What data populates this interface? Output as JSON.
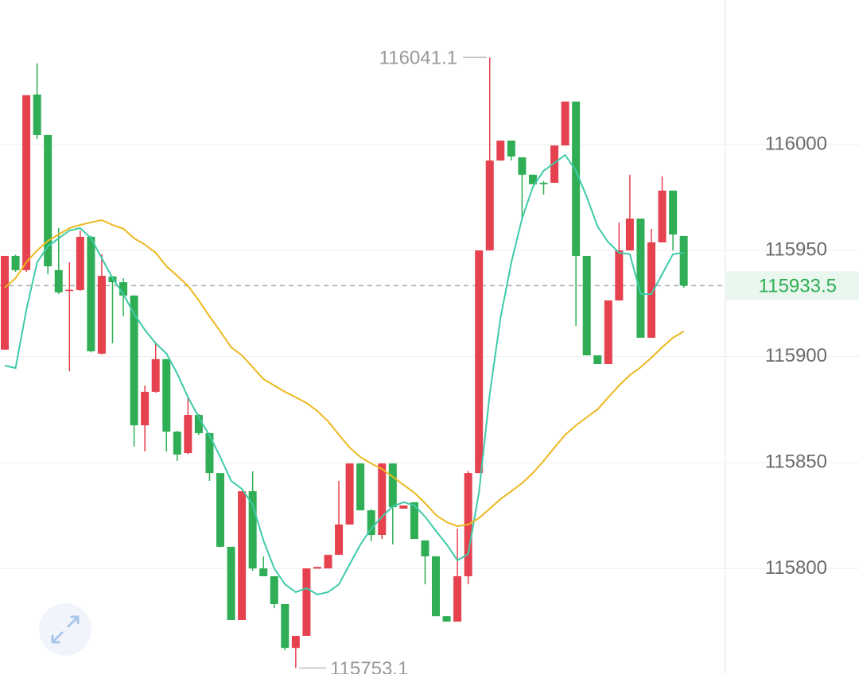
{
  "chart_data": {
    "type": "candlestick",
    "up_color": "#e5414e",
    "down_color": "#2fae55",
    "ylim": [
      115750.3,
      116068.2
    ],
    "yticks": [
      115800,
      115850,
      115900,
      115950,
      116000
    ],
    "grid": true,
    "open": [
      115903.3,
      115947.5,
      115940.8,
      116023.6,
      116004.5,
      115940.8,
      115931.0,
      115931.4,
      115956.5,
      115901.4,
      115937.8,
      115935.1,
      115928.8,
      115867.6,
      115883.4,
      115898.8,
      115864.6,
      115854.5,
      115872.5,
      115863.9,
      115845.1,
      115810.3,
      115775.8,
      115836.5,
      115800.1,
      115796.4,
      115783.3,
      115762.6,
      115768.3,
      115800.0,
      115800.1,
      115806.5,
      115820.8,
      115849.6,
      115827.5,
      115815.9,
      115849.6,
      115828.3,
      115831.3,
      115813.3,
      115805.8,
      115777.6,
      115775.0,
      115796.4,
      115845.1,
      115950.1,
      115992.5,
      116001.9,
      115994.0,
      115985.8,
      115982.0,
      115982.0,
      115999.6,
      116020.3,
      115947.5,
      115900.6,
      115896.5,
      115926.5,
      115950.1,
      115965.1,
      115908.9,
      115953.9,
      115978.3,
      115956.9
    ],
    "high": [
      115947.5,
      115948.0,
      116023.3,
      116038.3,
      116004.5,
      115960.6,
      115944.5,
      115959.5,
      115957.0,
      115948.3,
      115938.0,
      115937.0,
      115929.0,
      115886.4,
      115907.0,
      115899.0,
      115865.0,
      115880.8,
      115873.0,
      115864.0,
      115845.1,
      115810.3,
      115836.5,
      115845.9,
      115805.8,
      115796.4,
      115783.3,
      115768.3,
      115800.1,
      115800.8,
      115806.5,
      115841.4,
      115849.6,
      115849.6,
      115828.0,
      115849.6,
      115849.6,
      115829.8,
      115831.3,
      115813.3,
      115805.8,
      115777.6,
      115818.9,
      115846.0,
      115950.1,
      116041.1,
      116001.9,
      116001.9,
      115994.0,
      115985.8,
      115982.8,
      115999.6,
      116020.3,
      116020.3,
      115947.5,
      115900.6,
      115926.5,
      115963.3,
      115985.8,
      115965.1,
      115960.3,
      115985.0,
      115978.3,
      115956.9
    ],
    "low": [
      115903.3,
      115940.0,
      115940.0,
      116002.6,
      115938.9,
      115929.5,
      115893.1,
      115931.0,
      115902.0,
      115901.0,
      115906.3,
      115919.0,
      115857.5,
      115855.3,
      115883.0,
      115855.3,
      115850.8,
      115854.0,
      115863.0,
      115841.4,
      115810.0,
      115775.8,
      115775.8,
      115799.0,
      115796.4,
      115781.4,
      115761.5,
      115753.1,
      115768.3,
      115800.0,
      115800.1,
      115806.5,
      115820.8,
      115827.5,
      115813.0,
      115814.0,
      115811.4,
      115828.3,
      115814.0,
      115792.6,
      115777.6,
      115775.0,
      115775.0,
      115792.6,
      115845.1,
      115950.1,
      115992.5,
      115992.5,
      115965.1,
      115981.3,
      115976.4,
      115982.0,
      115999.6,
      115914.5,
      115900.6,
      115896.5,
      115896.5,
      115926.5,
      115950.1,
      115908.9,
      115908.9,
      115953.9,
      115950.1,
      115932.5
    ],
    "close": [
      115947.5,
      115940.8,
      116023.3,
      116004.5,
      115942.6,
      115930.3,
      115931.5,
      115956.5,
      115902.5,
      115938.1,
      115935.1,
      115928.8,
      115867.6,
      115883.4,
      115898.8,
      115864.6,
      115853.8,
      115872.5,
      115863.9,
      115845.1,
      115810.3,
      115775.8,
      115836.5,
      115800.1,
      115796.4,
      115783.3,
      115762.6,
      115768.3,
      115800.1,
      115800.8,
      115806.5,
      115820.8,
      115849.6,
      115827.5,
      115815.9,
      115849.6,
      115829.0,
      115829.8,
      115814.0,
      115805.8,
      115777.6,
      115775.0,
      115796.4,
      115845.1,
      115950.1,
      115992.5,
      116001.9,
      115994.4,
      115985.8,
      115981.3,
      115981.3,
      115999.6,
      116020.3,
      115947.5,
      115900.6,
      115896.5,
      115926.5,
      115950.1,
      115965.1,
      115908.9,
      115953.9,
      115978.3,
      115957.6,
      115933.5
    ],
    "series": [
      {
        "color": "#3fcaa9",
        "values": [
          115895.8,
          115894.6,
          115922.0,
          115944.5,
          115952.0,
          115955.8,
          115959.5,
          115960.6,
          115955.8,
          115946.4,
          115937.0,
          115929.5,
          115920.1,
          115912.6,
          115906.3,
          115901.4,
          115892.0,
          115880.8,
          115871.4,
          115862.8,
          115852.6,
          115841.4,
          115837.6,
          115830.1,
          115813.3,
          115800.1,
          115792.6,
          115788.9,
          115790.8,
          115787.8,
          115788.9,
          115792.6,
          115802.0,
          115811.4,
          115818.9,
          115824.5,
          115829.4,
          115831.3,
          115829.8,
          115824.5,
          115817.8,
          115811.4,
          115803.9,
          115806.9,
          115835.8,
          115882.6,
          115918.3,
          115944.5,
          115965.1,
          115980.1,
          115987.6,
          115991.4,
          115995.1,
          115987.6,
          115975.3,
          115961.4,
          115953.9,
          115949.0,
          115948.3,
          115929.5,
          115929.5,
          115938.9,
          115948.3,
          115949.0
        ]
      },
      {
        "color": "#ecb81f",
        "values": [
          115932.5,
          115937.0,
          115944.5,
          115950.1,
          115954.6,
          115957.6,
          115960.6,
          115962.1,
          115963.3,
          115964.4,
          115962.1,
          115960.3,
          115955.8,
          115952.8,
          115949.0,
          115942.6,
          115938.1,
          115933.3,
          115926.5,
          115919.0,
          115911.9,
          115904.4,
          115900.6,
          115895.0,
          115889.4,
          115886.4,
          115883.4,
          115880.8,
          115878.1,
          115874.4,
          115869.5,
          115863.1,
          115857.1,
          115852.6,
          115849.6,
          115847.0,
          115843.3,
          115839.5,
          115835.8,
          115830.9,
          115825.3,
          115821.9,
          115820.0,
          115820.8,
          115823.8,
          115828.3,
          115832.8,
          115836.5,
          115840.3,
          115845.1,
          115850.8,
          115857.1,
          115863.1,
          115867.6,
          115871.4,
          115875.1,
          115880.8,
          115886.4,
          115891.3,
          115895.0,
          115899.5,
          115904.4,
          115908.9,
          115911.9
        ]
      }
    ],
    "annotations": [
      116041.1,
      115753.1
    ],
    "last_price": 115933.5,
    "last_price_color": "#2fae55"
  }
}
